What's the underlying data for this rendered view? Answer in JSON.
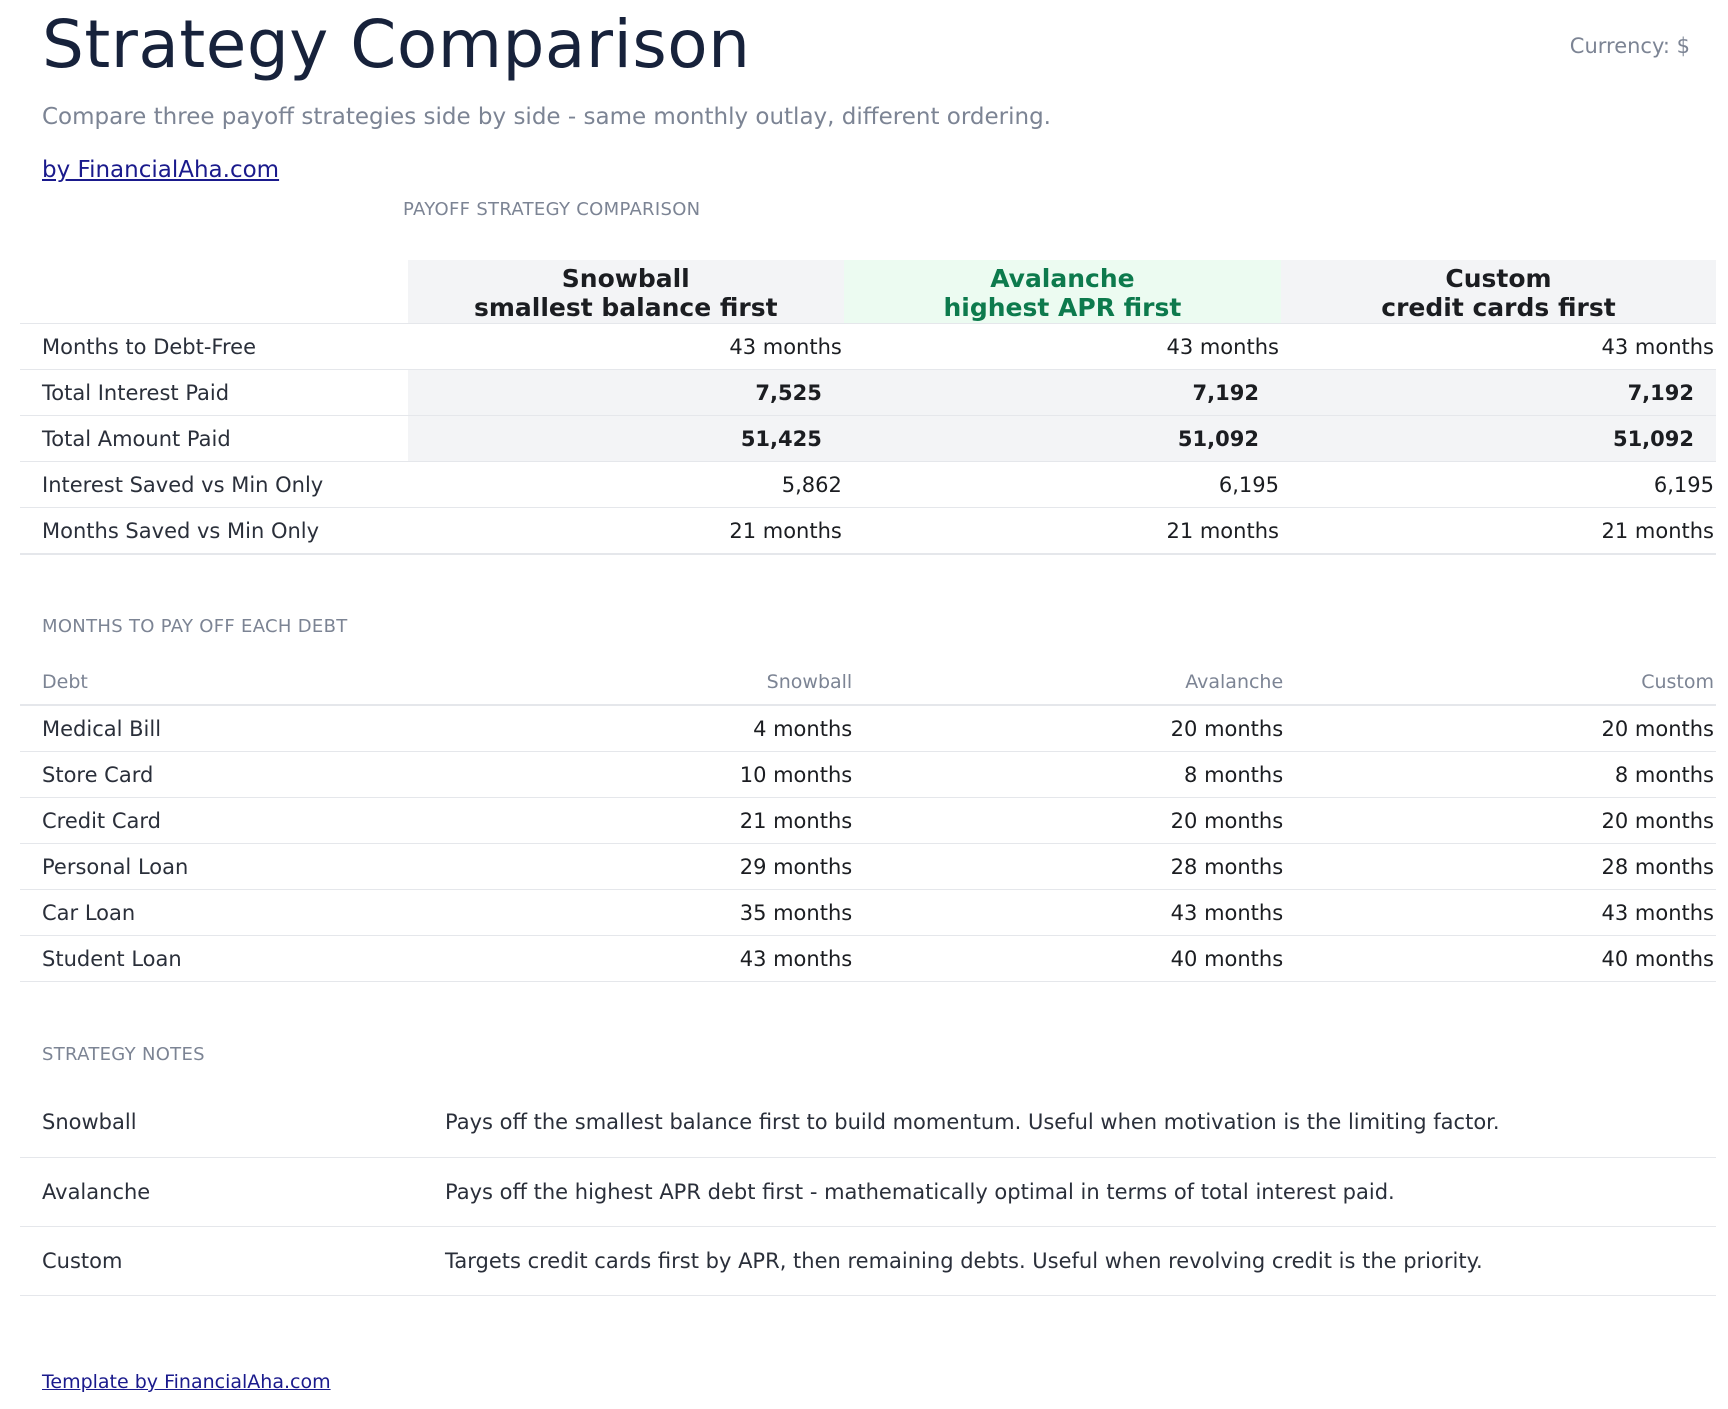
{
  "header": {
    "title": "Strategy Comparison",
    "currency": "Currency: $",
    "subtitle": "Compare three payoff strategies side by side - same monthly outlay, different ordering.",
    "byline": "by FinancialAha.com"
  },
  "comparison": {
    "section_label": "PAYOFF STRATEGY COMPARISON",
    "columns": [
      {
        "name": "Snowball",
        "sub": "smallest balance first"
      },
      {
        "name": "Avalanche",
        "sub": "highest APR first"
      },
      {
        "name": "Custom",
        "sub": "credit cards first"
      }
    ],
    "rows": [
      {
        "label": "Months to Debt-Free",
        "values": [
          "43 months",
          "43 months",
          "43 months"
        ]
      },
      {
        "label": "Total Interest Paid",
        "values": [
          "7,525",
          "7,192",
          "7,192"
        ]
      },
      {
        "label": "Total Amount Paid",
        "values": [
          "51,425",
          "51,092",
          "51,092"
        ]
      },
      {
        "label": "Interest Saved vs Min Only",
        "values": [
          "5,862",
          "6,195",
          "6,195"
        ]
      },
      {
        "label": "Months Saved vs Min Only",
        "values": [
          "21 months",
          "21 months",
          "21 months"
        ]
      }
    ]
  },
  "months": {
    "section_label": "MONTHS TO PAY OFF EACH DEBT",
    "headers": [
      "Debt",
      "Snowball",
      "Avalanche",
      "Custom"
    ],
    "rows": [
      {
        "label": "Medical Bill",
        "values": [
          "4 months",
          "20 months",
          "20 months"
        ]
      },
      {
        "label": "Store Card",
        "values": [
          "10 months",
          "8 months",
          "8 months"
        ]
      },
      {
        "label": "Credit Card",
        "values": [
          "21 months",
          "20 months",
          "20 months"
        ]
      },
      {
        "label": "Personal Loan",
        "values": [
          "29 months",
          "28 months",
          "28 months"
        ]
      },
      {
        "label": "Car Loan",
        "values": [
          "35 months",
          "43 months",
          "43 months"
        ]
      },
      {
        "label": "Student Loan",
        "values": [
          "43 months",
          "40 months",
          "40 months"
        ]
      }
    ]
  },
  "notes": {
    "section_label": "STRATEGY NOTES",
    "rows": [
      {
        "label": "Snowball",
        "text": "Pays off the smallest balance first to build momentum. Useful when motivation is the limiting factor."
      },
      {
        "label": "Avalanche",
        "text": "Pays off the highest APR debt first - mathematically optimal in terms of total interest paid."
      },
      {
        "label": "Custom",
        "text": "Targets credit cards first by APR, then remaining debts. Useful when revolving credit is the priority."
      }
    ]
  },
  "footer": {
    "link": "Template by FinancialAha.com"
  },
  "colors": {
    "title": "#17223b",
    "muted": "#7c8494",
    "highlight_bg": "#ecfbf1",
    "highlight_text": "#0d7a4d",
    "link": "#1a1a8c"
  }
}
